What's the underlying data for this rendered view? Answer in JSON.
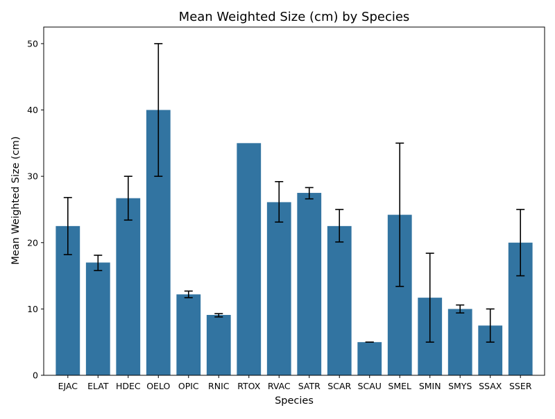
{
  "colors": {
    "bar": "#3274a1",
    "error_bar": "#000000",
    "axis": "#000000",
    "background": "#ffffff"
  },
  "chart_data": {
    "type": "bar",
    "title": "Mean Weighted Size (cm) by Species",
    "xlabel": "Species",
    "ylabel": "Mean Weighted Size (cm)",
    "ylim": [
      0,
      52.5
    ],
    "yticks": [
      0,
      10,
      20,
      30,
      40,
      50
    ],
    "grid": false,
    "categories": [
      "EJAC",
      "ELAT",
      "HDEC",
      "OELO",
      "OPIC",
      "RNIC",
      "RTOX",
      "RVAC",
      "SATR",
      "SCAR",
      "SCAU",
      "SMEL",
      "SMIN",
      "SMYS",
      "SSAX",
      "SSER"
    ],
    "values": [
      22.5,
      17.0,
      26.7,
      40.0,
      12.2,
      9.1,
      35.0,
      26.1,
      27.5,
      22.5,
      5.0,
      24.2,
      11.7,
      10.0,
      7.5,
      20.0
    ],
    "error_low": [
      18.2,
      15.8,
      23.4,
      30.0,
      11.7,
      8.8,
      null,
      23.1,
      26.6,
      20.1,
      5.0,
      13.4,
      5.0,
      9.4,
      5.0,
      15.0
    ],
    "error_high": [
      26.8,
      18.1,
      30.0,
      50.0,
      12.7,
      9.3,
      null,
      29.2,
      28.3,
      25.0,
      5.0,
      35.0,
      18.4,
      10.6,
      10.0,
      25.0
    ]
  }
}
